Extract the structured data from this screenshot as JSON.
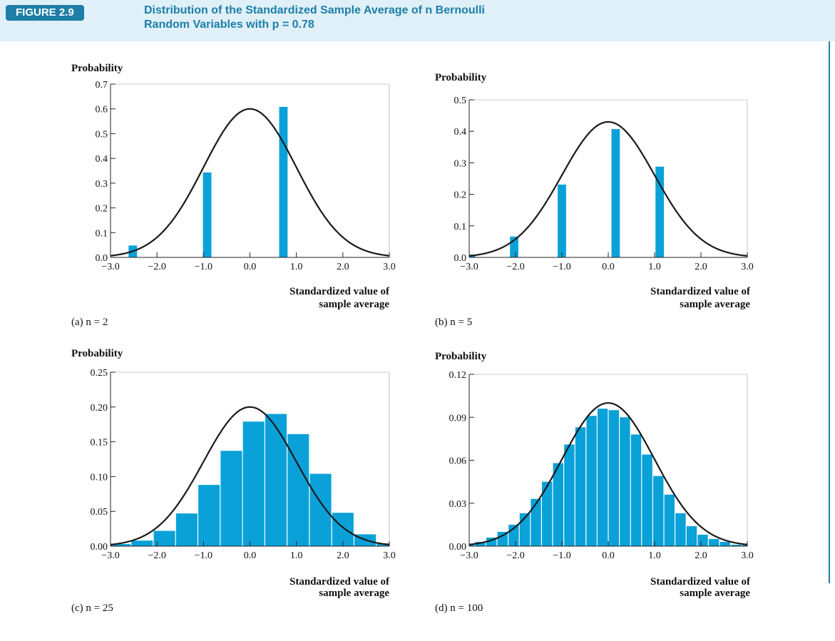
{
  "figure": {
    "badge": "FIGURE 2.9",
    "title_line1": "Distribution of the Standardized Sample Average of n Bernoulli",
    "title_line2": "Random Variables with p = 0.78"
  },
  "colors": {
    "bar": "#0aa1d8",
    "curve": "#1a1a1a",
    "accent": "#1d7ea8",
    "header_bg": "#dff0f8"
  },
  "chart_data": [
    {
      "type": "bar",
      "panel_label": "(a) n = 2",
      "ylabel": "Probability",
      "xlabel_line1": "Standardized value of",
      "xlabel_line2": "sample average",
      "xlim": [
        -3.0,
        3.0
      ],
      "ylim": [
        0,
        0.7
      ],
      "xticks": [
        "−3.0",
        "−2.0",
        "−1.0",
        "0.0",
        "1.0",
        "2.0",
        "3.0"
      ],
      "yticks": [
        "0.0",
        "0.1",
        "0.2",
        "0.3",
        "0.4",
        "0.5",
        "0.6",
        "0.7"
      ],
      "bar_width": 0.2,
      "x": [
        -2.52,
        -0.92,
        0.72
      ],
      "values": [
        0.048,
        0.343,
        0.608
      ],
      "normal_peak": 0.6
    },
    {
      "type": "bar",
      "panel_label": "(b) n = 5",
      "ylabel": "Probability",
      "xlabel_line1": "Standardized value of",
      "xlabel_line2": "sample average",
      "xlim": [
        -3.0,
        3.0
      ],
      "ylim": [
        0,
        0.5
      ],
      "xticks": [
        "−3.0",
        "−2.0",
        "−1.0",
        "0.0",
        "1.0",
        "2.0",
        "3.0"
      ],
      "yticks": [
        "0.0",
        "0.1",
        "0.2",
        "0.3",
        "0.4",
        "0.5"
      ],
      "bar_width": 0.2,
      "x": [
        -2.96,
        -2.03,
        -1.0,
        0.16,
        1.11
      ],
      "values": [
        0.009,
        0.066,
        0.231,
        0.407,
        0.288
      ],
      "normal_peak": 0.43
    },
    {
      "type": "bar",
      "panel_label": "(c) n = 25",
      "ylabel": "Probability",
      "xlabel_line1": "Standardized value of",
      "xlabel_line2": "sample average",
      "xlim": [
        -3.0,
        3.0
      ],
      "ylim": [
        0,
        0.25
      ],
      "xticks": [
        "−3.0",
        "−2.0",
        "−1.0",
        "0.0",
        "1.0",
        "2.0",
        "3.0"
      ],
      "yticks": [
        "0.00",
        "0.05",
        "0.10",
        "0.15",
        "0.20",
        "0.25"
      ],
      "bar_width": 0.48,
      "x": [
        -2.8,
        -2.32,
        -1.84,
        -1.36,
        -0.88,
        -0.4,
        0.08,
        0.56,
        1.04,
        1.52,
        2.0,
        2.48,
        2.96
      ],
      "values": [
        0.003,
        0.008,
        0.022,
        0.047,
        0.088,
        0.137,
        0.179,
        0.19,
        0.161,
        0.104,
        0.048,
        0.017,
        0.004
      ],
      "normal_peak": 0.2
    },
    {
      "type": "bar",
      "panel_label": "(d) n = 100",
      "ylabel": "Probability",
      "xlabel_line1": "Standardized value of",
      "xlabel_line2": "sample average",
      "xlim": [
        -3.0,
        3.0
      ],
      "ylim": [
        0,
        0.12
      ],
      "xticks": [
        "−3.0",
        "−2.0",
        "−1.0",
        "0.0",
        "1.0",
        "2.0",
        "3.0"
      ],
      "yticks": [
        "0.00",
        "0.03",
        "0.06",
        "0.09",
        "0.12"
      ],
      "bar_width": 0.24,
      "x": [
        -3.0,
        -2.76,
        -2.52,
        -2.28,
        -2.04,
        -1.8,
        -1.56,
        -1.32,
        -1.08,
        -0.84,
        -0.6,
        -0.36,
        -0.12,
        0.12,
        0.36,
        0.6,
        0.84,
        1.08,
        1.32,
        1.56,
        1.8,
        2.04,
        2.28,
        2.52,
        2.76,
        3.0
      ],
      "values": [
        0.001,
        0.003,
        0.006,
        0.01,
        0.015,
        0.023,
        0.033,
        0.045,
        0.058,
        0.071,
        0.083,
        0.091,
        0.096,
        0.095,
        0.09,
        0.078,
        0.064,
        0.049,
        0.036,
        0.023,
        0.014,
        0.008,
        0.005,
        0.003,
        0.001,
        0.001
      ],
      "normal_peak": 0.1
    }
  ]
}
